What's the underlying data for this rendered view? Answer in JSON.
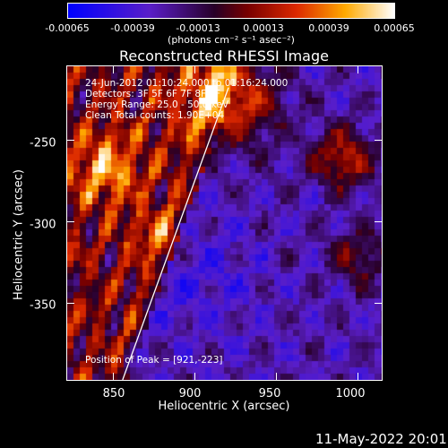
{
  "colorbar": {
    "tick_labels": [
      "-0.00065",
      "-0.00039",
      "-0.00013",
      "0.00013",
      "0.00039",
      "0.00065"
    ],
    "units": "(photons cm⁻² s⁻¹ asec⁻²)"
  },
  "chart_data": {
    "type": "heatmap",
    "title": "Reconstructed RHESSI Image",
    "xlabel": "Heliocentric X (arcsec)",
    "ylabel": "Heliocentric Y (arcsec)",
    "xlim": [
      822,
      1015
    ],
    "ylim": [
      -397,
      -205
    ],
    "x_ticks": [
      "850",
      "900",
      "950",
      "1000"
    ],
    "y_ticks": [
      "-250",
      "-300",
      "-350"
    ],
    "x_tick_values": [
      850,
      900,
      950,
      1000
    ],
    "y_tick_values": [
      -250,
      -300,
      -350
    ],
    "value_range": [
      -0.00065,
      0.00065
    ],
    "colormap": "blue-purple-red-yellow-white",
    "limb_line": [
      [
        856,
        -397
      ],
      [
        921,
        -218
      ]
    ],
    "peak": [
      921,
      -223
    ]
  },
  "annotations": {
    "line1": "24-Jun-2012 01:10:24.000 to 01:16:24.000",
    "line2": "Detectors: 3F 5F 6F 7F 8F 9F",
    "line3": "Energy Range: 25.0 - 50.0 keV",
    "line4": "Clean     Total counts: 1.90E+04",
    "peak": "Position of Peak = [921,-223]"
  },
  "footer": {
    "timestamp": "11-May-2022 20:01"
  }
}
